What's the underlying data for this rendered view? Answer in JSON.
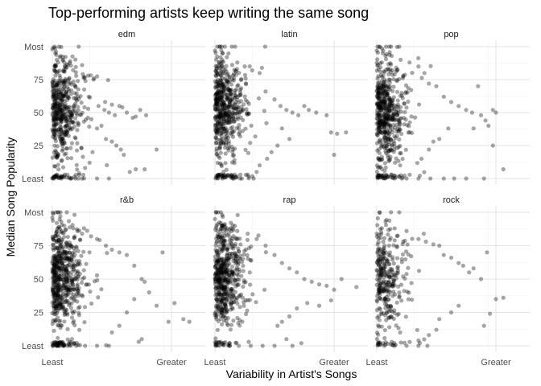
{
  "chart_data": {
    "type": "scatter",
    "title": "Top-performing artists keep writing the same song",
    "xlabel": "Variability in Artist's Songs",
    "ylabel": "Median Song Popularity",
    "x_tick_labels": [
      "Least",
      "Greater"
    ],
    "y_tick_labels": [
      "Least",
      "25",
      "50",
      "75",
      "Most"
    ],
    "y_ticks": [
      0,
      25,
      50,
      75,
      100
    ],
    "xlim": [
      0,
      1
    ],
    "ylim": [
      0,
      100
    ],
    "x_tick_positions": [
      0,
      0.8
    ],
    "grid": true,
    "point_color": "#000000",
    "point_opacity": 0.35,
    "panels": [
      {
        "label": "edm",
        "points": [
          [
            0.0,
            98
          ],
          [
            0.02,
            95
          ],
          [
            0.05,
            92
          ],
          [
            0.03,
            90
          ],
          [
            0.08,
            88
          ],
          [
            0.12,
            89
          ],
          [
            0.2,
            86
          ],
          [
            0.24,
            78
          ],
          [
            0.28,
            76
          ],
          [
            0.31,
            55
          ],
          [
            0.35,
            52
          ],
          [
            0.38,
            50
          ],
          [
            0.4,
            56
          ],
          [
            0.42,
            48
          ],
          [
            0.45,
            55
          ],
          [
            0.47,
            54
          ],
          [
            0.5,
            50
          ],
          [
            0.54,
            46
          ],
          [
            0.56,
            47
          ],
          [
            0.59,
            52
          ],
          [
            0.63,
            48
          ],
          [
            0.36,
            30
          ],
          [
            0.4,
            28
          ],
          [
            0.43,
            25
          ],
          [
            0.46,
            22
          ],
          [
            0.48,
            18
          ],
          [
            0.52,
            5
          ],
          [
            0.56,
            7
          ],
          [
            0.7,
            22
          ],
          [
            0.62,
            7
          ],
          [
            0.33,
            40
          ],
          [
            0.3,
            38
          ],
          [
            0.27,
            20
          ],
          [
            0.25,
            12
          ],
          [
            0.22,
            8
          ],
          [
            0.18,
            4
          ],
          [
            0.06,
            0
          ],
          [
            0.12,
            0
          ],
          [
            0.2,
            0
          ],
          [
            0.3,
            0
          ],
          [
            0.38,
            0
          ]
        ],
        "extra_points": 500
      },
      {
        "label": "latin",
        "points": [
          [
            0.0,
            97
          ],
          [
            0.05,
            95
          ],
          [
            0.08,
            92
          ],
          [
            0.15,
            88
          ],
          [
            0.2,
            85
          ],
          [
            0.25,
            82
          ],
          [
            0.3,
            80
          ],
          [
            0.34,
            66
          ],
          [
            0.4,
            60
          ],
          [
            0.44,
            55
          ],
          [
            0.48,
            52
          ],
          [
            0.52,
            50
          ],
          [
            0.56,
            48
          ],
          [
            0.6,
            55
          ],
          [
            0.63,
            52
          ],
          [
            0.68,
            50
          ],
          [
            0.75,
            48
          ],
          [
            0.78,
            35
          ],
          [
            0.82,
            34
          ],
          [
            0.88,
            35
          ],
          [
            0.8,
            18
          ],
          [
            0.45,
            38
          ],
          [
            0.5,
            30
          ],
          [
            0.42,
            25
          ],
          [
            0.38,
            20
          ],
          [
            0.35,
            15
          ],
          [
            0.3,
            10
          ],
          [
            0.28,
            5
          ],
          [
            0.22,
            3
          ],
          [
            0.05,
            0
          ],
          [
            0.12,
            0
          ],
          [
            0.18,
            0
          ],
          [
            0.26,
            0
          ]
        ],
        "extra_points": 550
      },
      {
        "label": "pop",
        "points": [
          [
            0.0,
            97
          ],
          [
            0.04,
            95
          ],
          [
            0.1,
            93
          ],
          [
            0.16,
            90
          ],
          [
            0.22,
            88
          ],
          [
            0.28,
            85
          ],
          [
            0.32,
            80
          ],
          [
            0.35,
            72
          ],
          [
            0.4,
            70
          ],
          [
            0.45,
            62
          ],
          [
            0.5,
            58
          ],
          [
            0.55,
            55
          ],
          [
            0.6,
            52
          ],
          [
            0.64,
            50
          ],
          [
            0.7,
            48
          ],
          [
            0.73,
            44
          ],
          [
            0.75,
            40
          ],
          [
            0.68,
            70
          ],
          [
            0.78,
            52
          ],
          [
            0.8,
            50
          ],
          [
            0.48,
            38
          ],
          [
            0.42,
            30
          ],
          [
            0.38,
            28
          ],
          [
            0.35,
            22
          ],
          [
            0.3,
            15
          ],
          [
            0.85,
            7
          ],
          [
            0.78,
            25
          ],
          [
            0.65,
            38
          ],
          [
            0.05,
            0
          ],
          [
            0.12,
            0
          ],
          [
            0.2,
            0
          ],
          [
            0.28,
            0
          ],
          [
            0.36,
            0
          ],
          [
            0.45,
            0
          ],
          [
            0.52,
            0
          ],
          [
            0.6,
            0
          ],
          [
            0.72,
            0
          ]
        ],
        "extra_points": 550
      },
      {
        "label": "r&b",
        "points": [
          [
            0.0,
            96
          ],
          [
            0.03,
            92
          ],
          [
            0.08,
            90
          ],
          [
            0.14,
            88
          ],
          [
            0.2,
            84
          ],
          [
            0.26,
            82
          ],
          [
            0.3,
            80
          ],
          [
            0.36,
            75
          ],
          [
            0.4,
            72
          ],
          [
            0.45,
            70
          ],
          [
            0.5,
            68
          ],
          [
            0.55,
            60
          ],
          [
            0.6,
            50
          ],
          [
            0.62,
            48
          ],
          [
            0.65,
            40
          ],
          [
            0.7,
            30
          ],
          [
            0.74,
            70
          ],
          [
            0.78,
            18
          ],
          [
            0.82,
            32
          ],
          [
            0.88,
            20
          ],
          [
            0.92,
            18
          ],
          [
            0.55,
            35
          ],
          [
            0.5,
            25
          ],
          [
            0.45,
            15
          ],
          [
            0.4,
            10
          ],
          [
            0.58,
            3
          ],
          [
            0.6,
            5
          ],
          [
            0.05,
            0
          ],
          [
            0.1,
            0
          ],
          [
            0.16,
            0
          ],
          [
            0.22,
            0
          ],
          [
            0.3,
            0
          ],
          [
            0.38,
            0
          ]
        ],
        "extra_points": 600
      },
      {
        "label": "rap",
        "points": [
          [
            0.0,
            95
          ],
          [
            0.04,
            92
          ],
          [
            0.08,
            88
          ],
          [
            0.15,
            86
          ],
          [
            0.22,
            84
          ],
          [
            0.28,
            80
          ],
          [
            0.34,
            75
          ],
          [
            0.4,
            68
          ],
          [
            0.45,
            62
          ],
          [
            0.5,
            58
          ],
          [
            0.55,
            55
          ],
          [
            0.6,
            50
          ],
          [
            0.65,
            48
          ],
          [
            0.7,
            46
          ],
          [
            0.75,
            45
          ],
          [
            0.8,
            42
          ],
          [
            0.85,
            50
          ],
          [
            0.95,
            44
          ],
          [
            0.78,
            34
          ],
          [
            0.7,
            30
          ],
          [
            0.62,
            32
          ],
          [
            0.55,
            28
          ],
          [
            0.5,
            22
          ],
          [
            0.45,
            18
          ],
          [
            0.42,
            15
          ],
          [
            0.48,
            5
          ],
          [
            0.58,
            2
          ],
          [
            0.1,
            0
          ],
          [
            0.16,
            0
          ],
          [
            0.24,
            0
          ],
          [
            0.32,
            0
          ],
          [
            0.4,
            0
          ],
          [
            0.52,
            0
          ]
        ],
        "extra_points": 550
      },
      {
        "label": "rock",
        "points": [
          [
            0.0,
            84
          ],
          [
            0.03,
            85
          ],
          [
            0.12,
            88
          ],
          [
            0.2,
            86
          ],
          [
            0.28,
            80
          ],
          [
            0.33,
            78
          ],
          [
            0.38,
            76
          ],
          [
            0.42,
            75
          ],
          [
            0.45,
            68
          ],
          [
            0.5,
            66
          ],
          [
            0.55,
            62
          ],
          [
            0.58,
            60
          ],
          [
            0.62,
            55
          ],
          [
            0.65,
            58
          ],
          [
            0.7,
            50
          ],
          [
            0.74,
            70
          ],
          [
            0.8,
            35
          ],
          [
            0.85,
            36
          ],
          [
            0.76,
            24
          ],
          [
            0.72,
            15
          ],
          [
            0.55,
            30
          ],
          [
            0.5,
            25
          ],
          [
            0.42,
            20
          ],
          [
            0.4,
            12
          ],
          [
            0.35,
            8
          ],
          [
            0.28,
            4
          ],
          [
            0.05,
            0
          ],
          [
            0.12,
            0
          ],
          [
            0.2,
            0
          ],
          [
            0.28,
            0
          ],
          [
            0.34,
            0
          ]
        ],
        "extra_points": 320
      }
    ]
  }
}
